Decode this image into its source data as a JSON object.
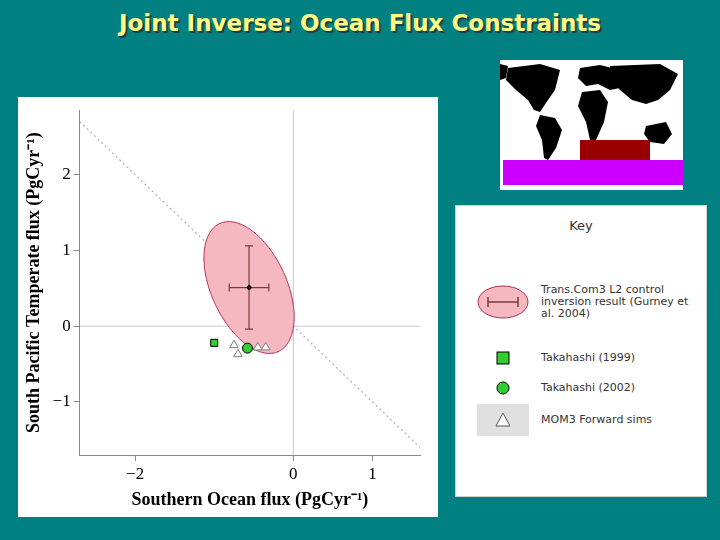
{
  "title": "Joint Inverse: Ocean Flux Constraints",
  "chart_data": {
    "type": "scatter",
    "x_label": "Southern Ocean flux (PgCyr⁻¹)",
    "y_label": "South Pacific Temperate flux (PgCyr⁻¹)",
    "xlim": [
      -2.7,
      1.6
    ],
    "ylim": [
      -1.7,
      2.85
    ],
    "xticks": [
      {
        "value": -2,
        "label": "−2"
      },
      0,
      1
    ],
    "yticks": [
      {
        "value": -1,
        "label": "−1"
      },
      0,
      1,
      2
    ],
    "grid": false,
    "legend": "right",
    "legend_title": "Key",
    "reference_lines": {
      "x": [
        0
      ],
      "y": [
        0
      ]
    },
    "lines": [
      {
        "x": [
          -2.7,
          1.6
        ],
        "y": [
          2.7,
          -1.6
        ],
        "color": "#b0b0b0",
        "line_style": "dotted"
      }
    ],
    "series": [
      {
        "name": "Trans.Com3 L2 control inversion result (Gurney et al. 2004)",
        "color": "#000000",
        "marker": "circle",
        "x": [
          -0.56
        ],
        "y": [
          0.51
        ],
        "error_x": [
          0.25
        ],
        "error_y": [
          0.55
        ],
        "ellipse": {
          "center": [
            -0.56,
            0.51
          ],
          "x_halfwidth": 0.57,
          "y_halfwidth": 0.87,
          "correlation": -0.45,
          "color": "#f5b8c0"
        }
      },
      {
        "name": "Takahashi (1999)",
        "color": "#33cc33",
        "marker": "square",
        "x": [
          -1.0
        ],
        "y": [
          -0.22
        ]
      },
      {
        "name": "Takahashi (2002)",
        "color": "#33cc33",
        "marker": "circle",
        "x": [
          -0.58
        ],
        "y": [
          -0.29
        ]
      },
      {
        "name": "MOM3 Forward sims",
        "color": "#ffffff",
        "marker": "triangle",
        "x": [
          -0.75,
          -0.7,
          -0.45,
          -0.35
        ],
        "y": [
          -0.25,
          -0.37,
          -0.28,
          -0.28
        ]
      }
    ]
  }
}
